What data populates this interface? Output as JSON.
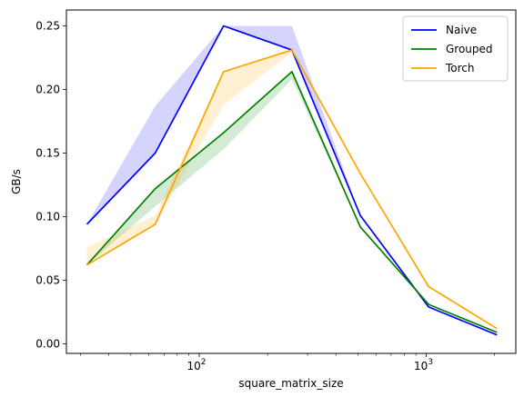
{
  "chart_data": {
    "type": "line",
    "title": "",
    "xlabel": "square_matrix_size",
    "ylabel": "GB/s",
    "xscale": "log",
    "xlim": [
      26,
      2480
    ],
    "ylim": [
      -0.0075,
      0.2625
    ],
    "x": [
      32,
      64,
      128,
      256,
      512,
      1024,
      2048
    ],
    "x_ticks": [
      {
        "value": 100,
        "base": "10",
        "exp": "2"
      },
      {
        "value": 1000,
        "base": "10",
        "exp": "3"
      }
    ],
    "y_ticks": [
      {
        "value": 0.0,
        "label": "0.00"
      },
      {
        "value": 0.05,
        "label": "0.05"
      },
      {
        "value": 0.1,
        "label": "0.10"
      },
      {
        "value": 0.15,
        "label": "0.15"
      },
      {
        "value": 0.2,
        "label": "0.20"
      },
      {
        "value": 0.25,
        "label": "0.25"
      }
    ],
    "grid": false,
    "legend_position": "top-right",
    "series": [
      {
        "name": "Naive",
        "color": "#0000ff",
        "values": [
          0.094,
          0.15,
          0.25,
          0.231,
          0.101,
          0.029,
          0.007
        ],
        "band_low": [
          0.094,
          0.15,
          0.25,
          0.231,
          0.101,
          0.029,
          0.007
        ],
        "band_high": [
          0.094,
          0.187,
          0.25,
          0.25,
          0.101,
          0.029,
          0.007
        ]
      },
      {
        "name": "Grouped",
        "color": "#008000",
        "values": [
          0.062,
          0.122,
          0.166,
          0.214,
          0.092,
          0.031,
          0.009
        ],
        "band_low": [
          0.062,
          0.108,
          0.153,
          0.208,
          0.092,
          0.031,
          0.009
        ],
        "band_high": [
          0.062,
          0.122,
          0.166,
          0.214,
          0.092,
          0.031,
          0.009
        ]
      },
      {
        "name": "Torch",
        "color": "#ffa500",
        "values": [
          0.062,
          0.094,
          0.214,
          0.231,
          0.134,
          0.045,
          0.012
        ],
        "band_low": [
          0.062,
          0.094,
          0.188,
          0.229,
          0.134,
          0.045,
          0.012
        ],
        "band_high": [
          0.076,
          0.101,
          0.214,
          0.232,
          0.134,
          0.045,
          0.012
        ]
      }
    ]
  }
}
